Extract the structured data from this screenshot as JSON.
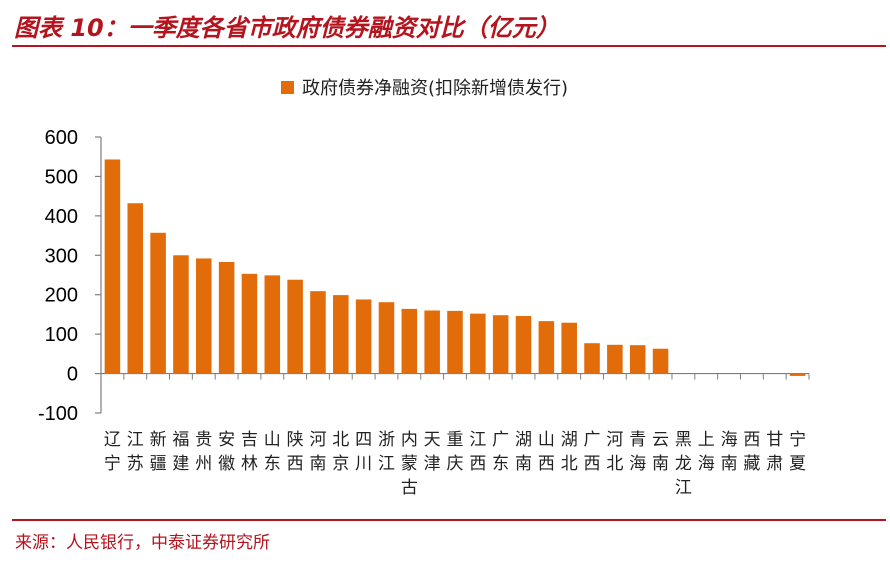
{
  "header": {
    "title": "图表 10：一季度各省市政府债券融资对比（亿元）"
  },
  "footer": {
    "source": "来源：人民银行，中泰证券研究所"
  },
  "colors": {
    "accent": "#b4141e",
    "bar": "#e26b0a",
    "axis": "#7f7f7f"
  },
  "chart_data": {
    "type": "bar",
    "legend": "top",
    "grid": false,
    "ylim": [
      -100,
      600
    ],
    "yticks": [
      -100,
      0,
      100,
      200,
      300,
      400,
      500,
      600
    ],
    "categories": [
      [
        "辽",
        "宁"
      ],
      [
        "江",
        "苏"
      ],
      [
        "新",
        "疆"
      ],
      [
        "福",
        "建"
      ],
      [
        "贵",
        "州"
      ],
      [
        "安",
        "徽"
      ],
      [
        "吉",
        "林"
      ],
      [
        "山",
        "东"
      ],
      [
        "陕",
        "西"
      ],
      [
        "河",
        "南"
      ],
      [
        "北",
        "京"
      ],
      [
        "四",
        "川"
      ],
      [
        "浙",
        "江"
      ],
      [
        "内",
        "蒙",
        "古"
      ],
      [
        "天",
        "津"
      ],
      [
        "重",
        "庆"
      ],
      [
        "江",
        "西"
      ],
      [
        "广",
        "东"
      ],
      [
        "湖",
        "南"
      ],
      [
        "山",
        "西"
      ],
      [
        "湖",
        "北"
      ],
      [
        "广",
        "西"
      ],
      [
        "河",
        "北"
      ],
      [
        "青",
        "海"
      ],
      [
        "云",
        "南"
      ],
      [
        "黑",
        "龙",
        "江"
      ],
      [
        "上",
        "海"
      ],
      [
        "海",
        "南"
      ],
      [
        "西",
        "藏"
      ],
      [
        "甘",
        "肃"
      ],
      [
        "宁",
        "夏"
      ]
    ],
    "series": [
      {
        "name": "政府债券净融资(扣除新增债发行)",
        "values": [
          543,
          432,
          357,
          300,
          292,
          283,
          253,
          249,
          238,
          209,
          199,
          188,
          181,
          164,
          160,
          159,
          152,
          148,
          146,
          133,
          129,
          77,
          73,
          72,
          63,
          0,
          0,
          0,
          0,
          0,
          -6
        ]
      }
    ]
  }
}
